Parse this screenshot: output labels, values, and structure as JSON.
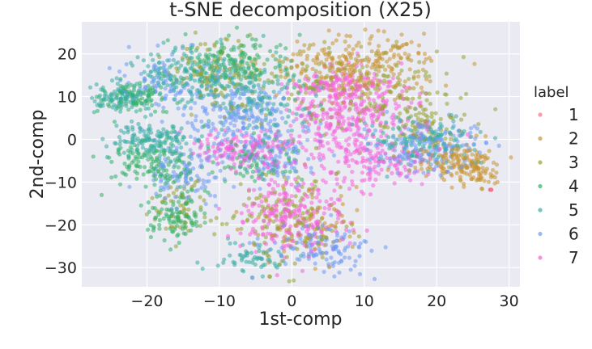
{
  "chart_data": {
    "type": "scatter",
    "title": "t-SNE decomposition (X25)",
    "xlabel": "1st-comp",
    "ylabel": "2nd-comp",
    "xlim": [
      -29,
      31.5
    ],
    "ylim": [
      -34.5,
      27.5
    ],
    "xticks": [
      -20,
      -10,
      0,
      10,
      20,
      30
    ],
    "yticks": [
      20,
      10,
      0,
      -10,
      -20,
      -30
    ],
    "xtick_labels": [
      "−20",
      "−10",
      "0",
      "10",
      "20",
      "30"
    ],
    "ytick_labels": [
      "20",
      "10",
      "0",
      "−10",
      "−20",
      "−30"
    ],
    "grid": true,
    "legend": {
      "title": "label",
      "placement": "right",
      "entries": [
        "1",
        "2",
        "3",
        "4",
        "5",
        "6",
        "7"
      ]
    },
    "series": [
      {
        "name": "1",
        "color": "#f77189",
        "clusters": [
          {
            "cx": 27.4,
            "cy": -11.8,
            "sx": 0.2,
            "sy": 0.2,
            "n": 2
          }
        ]
      },
      {
        "name": "2",
        "color": "#c69432",
        "clusters": [
          {
            "cx": 9,
            "cy": 17,
            "sx": 5,
            "sy": 4,
            "n": 260
          },
          {
            "cx": 22,
            "cy": -5,
            "sx": 3,
            "sy": 2.5,
            "n": 130
          },
          {
            "cx": 26,
            "cy": -7,
            "sx": 1.5,
            "sy": 2,
            "n": 60
          },
          {
            "cx": 2,
            "cy": -20,
            "sx": 4,
            "sy": 5,
            "n": 80
          }
        ]
      },
      {
        "name": "3",
        "color": "#96a331",
        "clusters": [
          {
            "cx": 10,
            "cy": 12,
            "sx": 6,
            "sy": 5,
            "n": 180
          },
          {
            "cx": 0,
            "cy": -18,
            "sx": 4,
            "sy": 6,
            "n": 150
          },
          {
            "cx": -10,
            "cy": 15,
            "sx": 4,
            "sy": 4,
            "n": 120
          },
          {
            "cx": 18,
            "cy": 4,
            "sx": 3,
            "sy": 3,
            "n": 80
          },
          {
            "cx": -15,
            "cy": -16,
            "sx": 2,
            "sy": 3,
            "n": 60
          }
        ]
      },
      {
        "name": "4",
        "color": "#32b166",
        "clusters": [
          {
            "cx": -8,
            "cy": 18,
            "sx": 4,
            "sy": 3,
            "n": 140
          },
          {
            "cx": -19,
            "cy": -6,
            "sx": 3,
            "sy": 3,
            "n": 140
          },
          {
            "cx": -22,
            "cy": 10,
            "sx": 2.5,
            "sy": 2,
            "n": 100
          },
          {
            "cx": -16,
            "cy": -18,
            "sx": 2,
            "sy": 3,
            "n": 100
          },
          {
            "cx": -5,
            "cy": -5,
            "sx": 3,
            "sy": 3,
            "n": 80
          }
        ]
      },
      {
        "name": "5",
        "color": "#36ada4",
        "clusters": [
          {
            "cx": -14,
            "cy": 15,
            "sx": 4,
            "sy": 3,
            "n": 180
          },
          {
            "cx": -19,
            "cy": 0,
            "sx": 3,
            "sy": 2,
            "n": 140
          },
          {
            "cx": -24,
            "cy": 10,
            "sx": 2,
            "sy": 2,
            "n": 90
          },
          {
            "cx": -5,
            "cy": 10,
            "sx": 4,
            "sy": 4,
            "n": 160
          },
          {
            "cx": 18,
            "cy": 0,
            "sx": 4,
            "sy": 3,
            "n": 140
          },
          {
            "cx": -6,
            "cy": -28,
            "sx": 3,
            "sy": 2,
            "n": 60
          }
        ]
      },
      {
        "name": "6",
        "color": "#6e9bf4",
        "clusters": [
          {
            "cx": -8,
            "cy": 6,
            "sx": 4,
            "sy": 4,
            "n": 200
          },
          {
            "cx": -2,
            "cy": -3,
            "sx": 3,
            "sy": 3,
            "n": 120
          },
          {
            "cx": 18,
            "cy": -2,
            "sx": 4,
            "sy": 3,
            "n": 180
          },
          {
            "cx": 4,
            "cy": -25,
            "sx": 4,
            "sy": 3,
            "n": 120
          },
          {
            "cx": -15,
            "cy": -8,
            "sx": 3,
            "sy": 3,
            "n": 100
          },
          {
            "cx": -18,
            "cy": 13,
            "sx": 3,
            "sy": 3,
            "n": 80
          }
        ]
      },
      {
        "name": "7",
        "color": "#f561dd",
        "clusters": [
          {
            "cx": 8,
            "cy": 5,
            "sx": 5,
            "sy": 5,
            "n": 320
          },
          {
            "cx": 0,
            "cy": -17,
            "sx": 4,
            "sy": 5,
            "n": 240
          },
          {
            "cx": -7,
            "cy": -2,
            "sx": 3,
            "sy": 2,
            "n": 140
          },
          {
            "cx": 12,
            "cy": -6,
            "sx": 4,
            "sy": 3,
            "n": 120
          },
          {
            "cx": 7,
            "cy": 13,
            "sx": 3,
            "sy": 2,
            "n": 100
          }
        ]
      }
    ]
  }
}
